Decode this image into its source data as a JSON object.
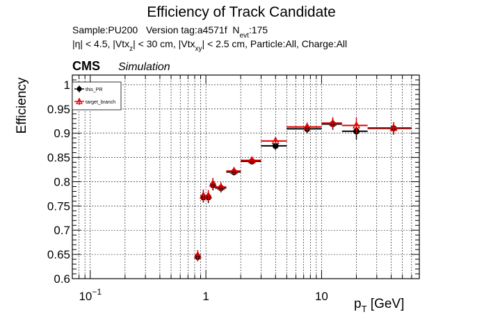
{
  "chart_data": {
    "type": "scatter",
    "title": "Efficiency of Track Candidate",
    "info_line1": {
      "prefix": "Sample:PU200   Version tag:a4571f  N",
      "sub": "evt",
      "suffix": ":175"
    },
    "info_line2": [
      {
        "text": "|η| < 4.5, |Vtx",
        "sub": "z"
      },
      {
        "text": "| < 30 cm, |Vtx",
        "sub": "xy"
      },
      {
        "text": "| < 2.5 cm, Particle:All, Charge:All",
        "sub": ""
      }
    ],
    "cms_label": "CMS",
    "cms_sublabel": "Simulation",
    "ylabel": "Efficiency",
    "xlabel_main": "p",
    "xlabel_sub": "T",
    "xlabel_unit": " [GeV]",
    "xscale": "log",
    "xlim": [
      0.07,
      70
    ],
    "ylim": [
      0.6,
      1.02
    ],
    "grid": true,
    "legend_position": "top-left",
    "x_ticks": [
      {
        "value": 0.1,
        "base": "10",
        "exp": "−1"
      },
      {
        "value": 1,
        "base": "1",
        "exp": ""
      },
      {
        "value": 10,
        "base": "10",
        "exp": ""
      }
    ],
    "y_ticks": [
      {
        "value": 0.6,
        "label": "0.6"
      },
      {
        "value": 0.65,
        "label": "0.65"
      },
      {
        "value": 0.7,
        "label": "0.7"
      },
      {
        "value": 0.75,
        "label": "0.75"
      },
      {
        "value": 0.8,
        "label": "0.8"
      },
      {
        "value": 0.85,
        "label": "0.85"
      },
      {
        "value": 0.9,
        "label": "0.9"
      },
      {
        "value": 0.95,
        "label": "0.95"
      },
      {
        "value": 1,
        "label": "1"
      }
    ],
    "series": [
      {
        "name": "this_PR",
        "color": "#000000",
        "marker": "filled-circle",
        "points": [
          {
            "x": 0.85,
            "xlo": 0.8,
            "xhi": 0.9,
            "y": 0.645,
            "ylo": 0.636,
            "yhi": 0.655
          },
          {
            "x": 0.95,
            "xlo": 0.9,
            "xhi": 1.0,
            "y": 0.768,
            "ylo": 0.757,
            "yhi": 0.78
          },
          {
            "x": 1.05,
            "xlo": 1.0,
            "xhi": 1.1,
            "y": 0.768,
            "ylo": 0.756,
            "yhi": 0.778
          },
          {
            "x": 1.15,
            "xlo": 1.1,
            "xhi": 1.2,
            "y": 0.793,
            "ylo": 0.782,
            "yhi": 0.805
          },
          {
            "x": 1.35,
            "xlo": 1.2,
            "xhi": 1.5,
            "y": 0.787,
            "ylo": 0.778,
            "yhi": 0.797
          },
          {
            "x": 1.75,
            "xlo": 1.5,
            "xhi": 2.0,
            "y": 0.82,
            "ylo": 0.813,
            "yhi": 0.828
          },
          {
            "x": 2.5,
            "xlo": 2.0,
            "xhi": 3.0,
            "y": 0.842,
            "ylo": 0.836,
            "yhi": 0.848
          },
          {
            "x": 4.0,
            "xlo": 3.0,
            "xhi": 5.0,
            "y": 0.874,
            "ylo": 0.866,
            "yhi": 0.882
          },
          {
            "x": 7.5,
            "xlo": 5.0,
            "xhi": 10.0,
            "y": 0.909,
            "ylo": 0.9,
            "yhi": 0.918
          },
          {
            "x": 12.5,
            "xlo": 10.0,
            "xhi": 15.0,
            "y": 0.919,
            "ylo": 0.907,
            "yhi": 0.93
          },
          {
            "x": 20.0,
            "xlo": 15.0,
            "xhi": 25.0,
            "y": 0.904,
            "ylo": 0.887,
            "yhi": 0.92
          },
          {
            "x": 42.0,
            "xlo": 25.0,
            "xhi": 60.0,
            "y": 0.91,
            "ylo": 0.897,
            "yhi": 0.922
          }
        ]
      },
      {
        "name": "target_branch",
        "color": "#e00000",
        "marker": "open-triangle",
        "points": [
          {
            "x": 0.85,
            "xlo": 0.8,
            "xhi": 0.9,
            "y": 0.648,
            "ylo": 0.637,
            "yhi": 0.659
          },
          {
            "x": 0.95,
            "xlo": 0.9,
            "xhi": 1.0,
            "y": 0.771,
            "ylo": 0.758,
            "yhi": 0.784
          },
          {
            "x": 1.05,
            "xlo": 1.0,
            "xhi": 1.1,
            "y": 0.771,
            "ylo": 0.76,
            "yhi": 0.783
          },
          {
            "x": 1.15,
            "xlo": 1.1,
            "xhi": 1.2,
            "y": 0.796,
            "ylo": 0.785,
            "yhi": 0.808
          },
          {
            "x": 1.35,
            "xlo": 1.2,
            "xhi": 1.5,
            "y": 0.789,
            "ylo": 0.78,
            "yhi": 0.799
          },
          {
            "x": 1.75,
            "xlo": 1.5,
            "xhi": 2.0,
            "y": 0.822,
            "ylo": 0.815,
            "yhi": 0.83
          },
          {
            "x": 2.5,
            "xlo": 2.0,
            "xhi": 3.0,
            "y": 0.844,
            "ylo": 0.837,
            "yhi": 0.85
          },
          {
            "x": 4.0,
            "xlo": 3.0,
            "xhi": 5.0,
            "y": 0.884,
            "ylo": 0.876,
            "yhi": 0.892
          },
          {
            "x": 7.5,
            "xlo": 5.0,
            "xhi": 10.0,
            "y": 0.913,
            "ylo": 0.904,
            "yhi": 0.922
          },
          {
            "x": 12.5,
            "xlo": 10.0,
            "xhi": 15.0,
            "y": 0.921,
            "ylo": 0.909,
            "yhi": 0.933
          },
          {
            "x": 20.0,
            "xlo": 15.0,
            "xhi": 25.0,
            "y": 0.916,
            "ylo": 0.899,
            "yhi": 0.932
          },
          {
            "x": 42.0,
            "xlo": 25.0,
            "xhi": 60.0,
            "y": 0.911,
            "ylo": 0.898,
            "yhi": 0.923
          }
        ]
      }
    ]
  }
}
